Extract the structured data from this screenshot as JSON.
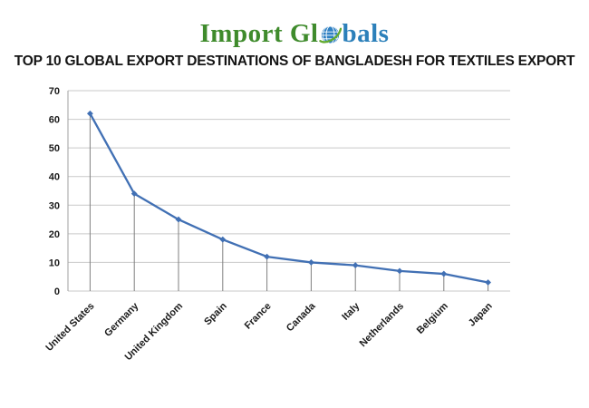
{
  "logo": {
    "text_left": "Import Gl",
    "text_right": "bals",
    "green_color": "#3f8b2c",
    "blue_color": "#2c80ba",
    "globe_icon": "globe-icon"
  },
  "title": "TOP 10 GLOBAL EXPORT DESTINATIONS OF BANGLADESH FOR TEXTILES EXPORT",
  "chart_data": {
    "type": "line",
    "categories": [
      "United States",
      "Germany",
      "United Kingdom",
      "Spain",
      "France",
      "Canada",
      "Italy",
      "Netherlands",
      "Belgium",
      "Japan"
    ],
    "values": [
      62,
      34,
      25,
      18,
      12,
      10,
      9,
      7,
      6,
      3
    ],
    "title": "",
    "xlabel": "",
    "ylabel": "",
    "ylim": [
      0,
      70
    ],
    "yticks": [
      0,
      10,
      20,
      30,
      40,
      50,
      60,
      70
    ],
    "grid": true,
    "legend": "none",
    "drop_lines": true,
    "marker": "diamond",
    "line_color": "#4170b4",
    "gridline_color": "#c9c9c9",
    "drop_line_color": "#7f7f7f",
    "axis_color": "#a0a0a0",
    "label_color": "#1a1a1a"
  }
}
